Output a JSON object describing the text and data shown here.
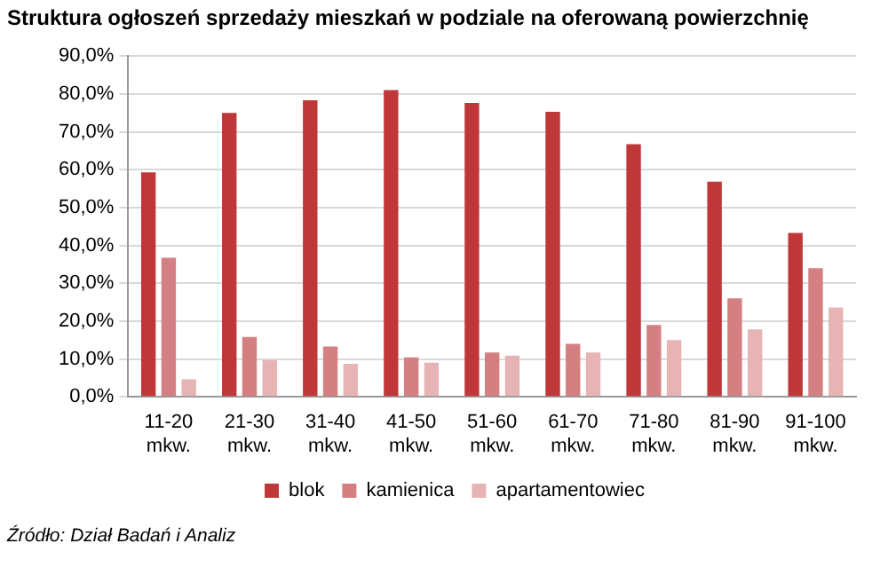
{
  "chart_data": {
    "type": "bar",
    "title": "Struktura ogłoszeń sprzedaży mieszkań w podziale na oferowaną powierzchnię",
    "categories": [
      "11-20 mkw.",
      "21-30 mkw.",
      "31-40 mkw.",
      "41-50 mkw.",
      "51-60 mkw.",
      "61-70 mkw.",
      "71-80 mkw.",
      "81-90 mkw.",
      "91-100 mkw."
    ],
    "series": [
      {
        "name": "blok",
        "color": "#c0373a",
        "values": [
          59.3,
          75,
          78.3,
          81,
          77.6,
          75.3,
          66.7,
          56.8,
          43.3
        ]
      },
      {
        "name": "kamienica",
        "color": "#d47f82",
        "values": [
          36.7,
          15.8,
          13.3,
          10.4,
          11.7,
          14,
          19,
          26,
          34
        ]
      },
      {
        "name": "apartamentowiec",
        "color": "#e6b4b5",
        "values": [
          4.6,
          9.7,
          8.7,
          9,
          10.9,
          11.7,
          15,
          17.8,
          23.6
        ]
      }
    ],
    "ylim": [
      0,
      90
    ],
    "yticks": [
      {
        "value": 0,
        "label": "0,0%"
      },
      {
        "value": 10,
        "label": "10,0%"
      },
      {
        "value": 20,
        "label": "20,0%"
      },
      {
        "value": 30,
        "label": "30,0%"
      },
      {
        "value": 40,
        "label": "40,0%"
      },
      {
        "value": 50,
        "label": "50,0%"
      },
      {
        "value": 60,
        "label": "60,0%"
      },
      {
        "value": 70,
        "label": "70,0%"
      },
      {
        "value": 80,
        "label": "80,0%"
      },
      {
        "value": 90,
        "label": "90,0%"
      }
    ],
    "grid": "y",
    "legend": "bottom",
    "annotations": [
      "Źródło: Dział Badań i Analiz"
    ]
  }
}
